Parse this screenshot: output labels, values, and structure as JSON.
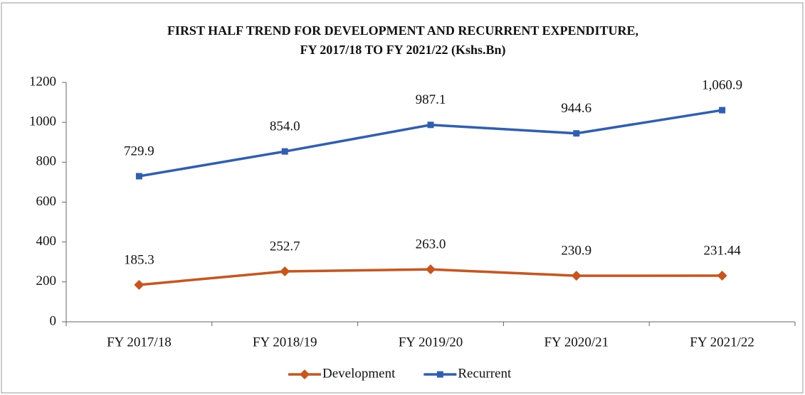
{
  "chart_data": {
    "type": "line",
    "title": [
      "FIRST HALF TREND FOR DEVELOPMENT AND RECURRENT EXPENDITURE,",
      "FY 2017/18 TO FY 2021/22 (Kshs.Bn)"
    ],
    "categories": [
      "FY 2017/18",
      "FY 2018/19",
      "FY 2019/20",
      "FY 2020/21",
      "FY 2021/22"
    ],
    "series": [
      {
        "name": "Development",
        "color": "#c9541c",
        "marker": "diamond",
        "values": [
          185.3,
          252.7,
          263.0,
          230.9,
          231.44
        ],
        "value_labels": [
          "185.3",
          "252.7",
          "263.0",
          "230.9",
          "231.44"
        ]
      },
      {
        "name": "Recurrent",
        "color": "#2f5fb3",
        "marker": "square",
        "values": [
          729.9,
          854.0,
          987.1,
          944.6,
          1060.9
        ],
        "value_labels": [
          "729.9",
          "854.0",
          "987.1",
          "944.6",
          "1,060.9"
        ]
      }
    ],
    "ylim": [
      0,
      1200
    ],
    "yticks": [
      0,
      200,
      400,
      600,
      800,
      1000,
      1200
    ],
    "grid": false,
    "legend": "bottom"
  }
}
